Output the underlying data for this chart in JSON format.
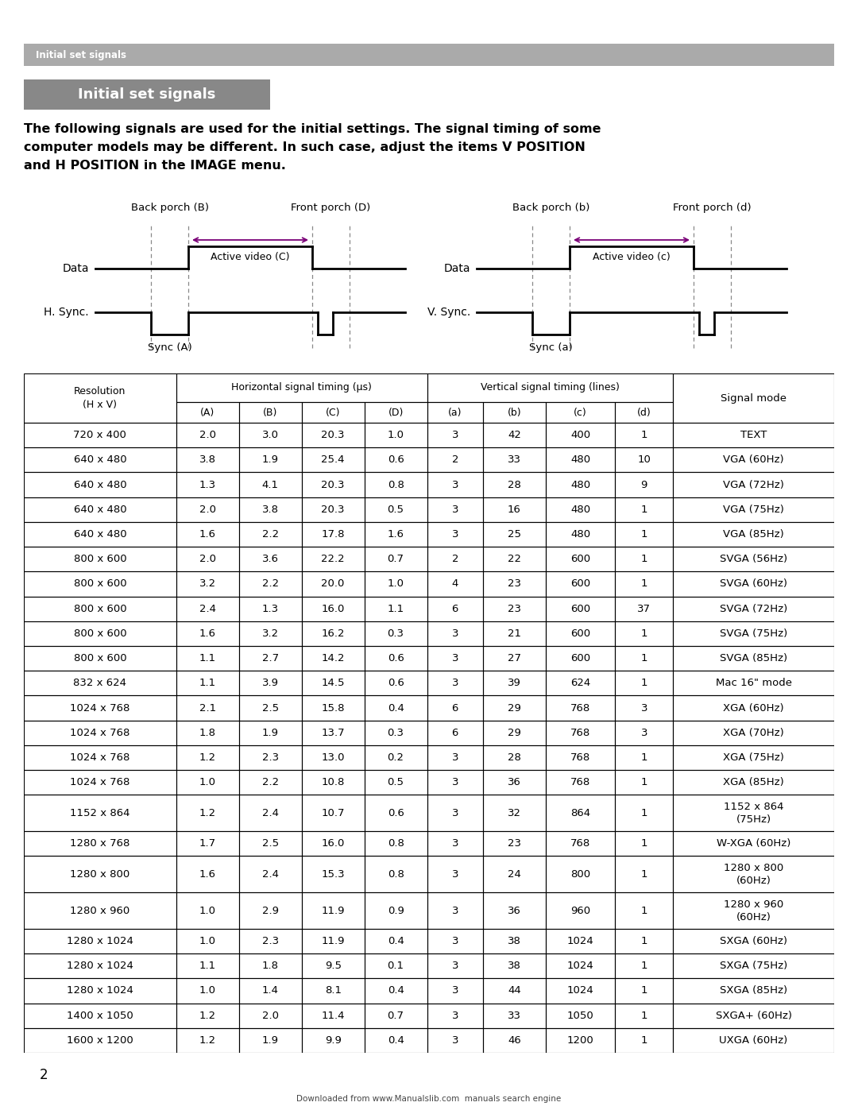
{
  "page_bg": "#ffffff",
  "header_bar_color": "#aaaaaa",
  "header_bar_text": "Initial set signals",
  "header_bar_text_color": "#ffffff",
  "title_box_text": "Initial set signals",
  "title_box_bg": "#888888",
  "title_box_border": "#666666",
  "body_text": "The following signals are used for the initial settings. The signal timing of some\ncomputer models may be different. In such case, adjust the items V POSITION\nand H POSITION in the IMAGE menu.",
  "table_rows": [
    [
      "720 x 400",
      "2.0",
      "3.0",
      "20.3",
      "1.0",
      "3",
      "42",
      "400",
      "1",
      "TEXT"
    ],
    [
      "640 x 480",
      "3.8",
      "1.9",
      "25.4",
      "0.6",
      "2",
      "33",
      "480",
      "10",
      "VGA (60Hz)"
    ],
    [
      "640 x 480",
      "1.3",
      "4.1",
      "20.3",
      "0.8",
      "3",
      "28",
      "480",
      "9",
      "VGA (72Hz)"
    ],
    [
      "640 x 480",
      "2.0",
      "3.8",
      "20.3",
      "0.5",
      "3",
      "16",
      "480",
      "1",
      "VGA (75Hz)"
    ],
    [
      "640 x 480",
      "1.6",
      "2.2",
      "17.8",
      "1.6",
      "3",
      "25",
      "480",
      "1",
      "VGA (85Hz)"
    ],
    [
      "800 x 600",
      "2.0",
      "3.6",
      "22.2",
      "0.7",
      "2",
      "22",
      "600",
      "1",
      "SVGA (56Hz)"
    ],
    [
      "800 x 600",
      "3.2",
      "2.2",
      "20.0",
      "1.0",
      "4",
      "23",
      "600",
      "1",
      "SVGA (60Hz)"
    ],
    [
      "800 x 600",
      "2.4",
      "1.3",
      "16.0",
      "1.1",
      "6",
      "23",
      "600",
      "37",
      "SVGA (72Hz)"
    ],
    [
      "800 x 600",
      "1.6",
      "3.2",
      "16.2",
      "0.3",
      "3",
      "21",
      "600",
      "1",
      "SVGA (75Hz)"
    ],
    [
      "800 x 600",
      "1.1",
      "2.7",
      "14.2",
      "0.6",
      "3",
      "27",
      "600",
      "1",
      "SVGA (85Hz)"
    ],
    [
      "832 x 624",
      "1.1",
      "3.9",
      "14.5",
      "0.6",
      "3",
      "39",
      "624",
      "1",
      "Mac 16\" mode"
    ],
    [
      "1024 x 768",
      "2.1",
      "2.5",
      "15.8",
      "0.4",
      "6",
      "29",
      "768",
      "3",
      "XGA (60Hz)"
    ],
    [
      "1024 x 768",
      "1.8",
      "1.9",
      "13.7",
      "0.3",
      "6",
      "29",
      "768",
      "3",
      "XGA (70Hz)"
    ],
    [
      "1024 x 768",
      "1.2",
      "2.3",
      "13.0",
      "0.2",
      "3",
      "28",
      "768",
      "1",
      "XGA (75Hz)"
    ],
    [
      "1024 x 768",
      "1.0",
      "2.2",
      "10.8",
      "0.5",
      "3",
      "36",
      "768",
      "1",
      "XGA (85Hz)"
    ],
    [
      "1152 x 864",
      "1.2",
      "2.4",
      "10.7",
      "0.6",
      "3",
      "32",
      "864",
      "1",
      "1152 x 864\n(75Hz)"
    ],
    [
      "1280 x 768",
      "1.7",
      "2.5",
      "16.0",
      "0.8",
      "3",
      "23",
      "768",
      "1",
      "W-XGA (60Hz)"
    ],
    [
      "1280 x 800",
      "1.6",
      "2.4",
      "15.3",
      "0.8",
      "3",
      "24",
      "800",
      "1",
      "1280 x 800\n(60Hz)"
    ],
    [
      "1280 x 960",
      "1.0",
      "2.9",
      "11.9",
      "0.9",
      "3",
      "36",
      "960",
      "1",
      "1280 x 960\n(60Hz)"
    ],
    [
      "1280 x 1024",
      "1.0",
      "2.3",
      "11.9",
      "0.4",
      "3",
      "38",
      "1024",
      "1",
      "SXGA (60Hz)"
    ],
    [
      "1280 x 1024",
      "1.1",
      "1.8",
      "9.5",
      "0.1",
      "3",
      "38",
      "1024",
      "1",
      "SXGA (75Hz)"
    ],
    [
      "1280 x 1024",
      "1.0",
      "1.4",
      "8.1",
      "0.4",
      "3",
      "44",
      "1024",
      "1",
      "SXGA (85Hz)"
    ],
    [
      "1400 x 1050",
      "1.2",
      "2.0",
      "11.4",
      "0.7",
      "3",
      "33",
      "1050",
      "1",
      "SXGA+ (60Hz)"
    ],
    [
      "1600 x 1200",
      "1.2",
      "1.9",
      "9.9",
      "0.4",
      "3",
      "46",
      "1200",
      "1",
      "UXGA (60Hz)"
    ]
  ],
  "footer_text": "2",
  "download_text": "Downloaded from www.Manualslib.com  manuals search engine"
}
